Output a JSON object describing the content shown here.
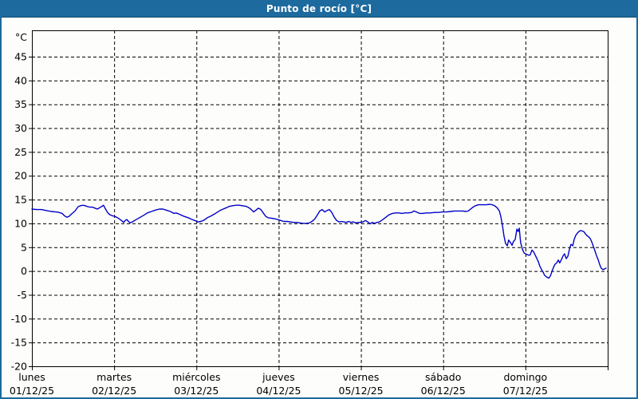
{
  "window": {
    "title": "Punto de rocío [°C]"
  },
  "colors": {
    "titlebar_bg": "#1d6a9e",
    "titlebar_border": "#10496f",
    "titlebar_text": "#ffffff",
    "page_bg": "#fdfefb",
    "page_border": "#1d6a9e",
    "axis": "#000000",
    "grid": "#000000",
    "line": "#0000c8"
  },
  "chart_data": {
    "type": "line",
    "title": "Punto de rocío [°C]",
    "y_unit": "°C",
    "ylim": [
      -20,
      50.5
    ],
    "yticks": [
      45,
      40,
      35,
      30,
      25,
      20,
      15,
      10,
      5,
      0,
      -5,
      -10,
      -15,
      -20
    ],
    "xlim_hours": [
      0,
      168
    ],
    "x_unit": "hours since 01/12/25 00:00",
    "grid": "dashed, horizontal every 5°C and vertical at day boundaries",
    "legend": "none",
    "x_day_labels": [
      {
        "name": "lunes",
        "date": "01/12/25"
      },
      {
        "name": "martes",
        "date": "02/12/25"
      },
      {
        "name": "miércoles",
        "date": "03/12/25"
      },
      {
        "name": "jueves",
        "date": "04/12/25"
      },
      {
        "name": "viernes",
        "date": "05/12/25"
      },
      {
        "name": "sábado",
        "date": "06/12/25"
      },
      {
        "name": "domingo",
        "date": "07/12/25"
      }
    ],
    "series": [
      {
        "name": "Punto de rocío",
        "color": "#0000c8",
        "points": [
          [
            0,
            13.0
          ],
          [
            1.4,
            12.9
          ],
          [
            2.8,
            12.9
          ],
          [
            4.2,
            12.7
          ],
          [
            5.6,
            12.5
          ],
          [
            7,
            12.4
          ],
          [
            7.9,
            12.3
          ],
          [
            8.8,
            12.1
          ],
          [
            9.5,
            11.6
          ],
          [
            10.2,
            11.3
          ],
          [
            10.9,
            11.5
          ],
          [
            11.6,
            12.0
          ],
          [
            12.6,
            12.6
          ],
          [
            13.5,
            13.5
          ],
          [
            14.2,
            13.7
          ],
          [
            14.9,
            13.8
          ],
          [
            15.6,
            13.7
          ],
          [
            16.3,
            13.5
          ],
          [
            17,
            13.4
          ],
          [
            17.7,
            13.4
          ],
          [
            18.4,
            13.2
          ],
          [
            19.1,
            13.0
          ],
          [
            19.8,
            13.3
          ],
          [
            20.5,
            13.6
          ],
          [
            20.9,
            13.8
          ],
          [
            21.4,
            13.1
          ],
          [
            21.9,
            12.5
          ],
          [
            22.3,
            12.1
          ],
          [
            22.8,
            11.8
          ],
          [
            23.5,
            11.6
          ],
          [
            24,
            11.5
          ],
          [
            24.7,
            11.3
          ],
          [
            25.4,
            11.0
          ],
          [
            26.1,
            10.6
          ],
          [
            26.8,
            10.2
          ],
          [
            27.2,
            10.6
          ],
          [
            27.7,
            10.8
          ],
          [
            28.2,
            10.4
          ],
          [
            28.6,
            10.1
          ],
          [
            29.3,
            10.3
          ],
          [
            30.2,
            10.7
          ],
          [
            31.4,
            11.2
          ],
          [
            32.6,
            11.7
          ],
          [
            33.7,
            12.2
          ],
          [
            34.9,
            12.5
          ],
          [
            36.1,
            12.8
          ],
          [
            37.2,
            13.0
          ],
          [
            38.2,
            13.0
          ],
          [
            39.1,
            12.8
          ],
          [
            40,
            12.6
          ],
          [
            40.7,
            12.4
          ],
          [
            41.4,
            12.1
          ],
          [
            42.1,
            12.2
          ],
          [
            42.8,
            12.0
          ],
          [
            43.7,
            11.7
          ],
          [
            44.7,
            11.4
          ],
          [
            45.6,
            11.2
          ],
          [
            46.5,
            10.9
          ],
          [
            47.5,
            10.6
          ],
          [
            48.4,
            10.3
          ],
          [
            49.3,
            10.4
          ],
          [
            50.3,
            10.7
          ],
          [
            51.2,
            11.2
          ],
          [
            52.1,
            11.5
          ],
          [
            53.1,
            11.9
          ],
          [
            54,
            12.3
          ],
          [
            54.9,
            12.7
          ],
          [
            55.8,
            13.0
          ],
          [
            56.8,
            13.3
          ],
          [
            57.7,
            13.6
          ],
          [
            58.6,
            13.7
          ],
          [
            59.6,
            13.8
          ],
          [
            60.5,
            13.8
          ],
          [
            61.4,
            13.7
          ],
          [
            62.4,
            13.6
          ],
          [
            63.3,
            13.3
          ],
          [
            64,
            12.9
          ],
          [
            64.7,
            12.4
          ],
          [
            65.4,
            12.8
          ],
          [
            66.1,
            13.2
          ],
          [
            66.8,
            12.9
          ],
          [
            67.5,
            12.2
          ],
          [
            68.2,
            11.5
          ],
          [
            68.9,
            11.2
          ],
          [
            69.8,
            11.1
          ],
          [
            70.7,
            11.0
          ],
          [
            71.7,
            10.8
          ],
          [
            72.6,
            10.6
          ],
          [
            73.5,
            10.4
          ],
          [
            74.5,
            10.4
          ],
          [
            75.4,
            10.3
          ],
          [
            76.3,
            10.2
          ],
          [
            77.3,
            10.2
          ],
          [
            78.2,
            10.1
          ],
          [
            79.1,
            10.0
          ],
          [
            80,
            10.0
          ],
          [
            81,
            10.1
          ],
          [
            81.9,
            10.5
          ],
          [
            82.6,
            11.0
          ],
          [
            83.3,
            11.8
          ],
          [
            84,
            12.6
          ],
          [
            84.7,
            12.9
          ],
          [
            85.4,
            12.4
          ],
          [
            86.1,
            12.7
          ],
          [
            86.8,
            12.9
          ],
          [
            87.5,
            12.3
          ],
          [
            88.2,
            11.3
          ],
          [
            88.9,
            10.6
          ],
          [
            89.6,
            10.3
          ],
          [
            90.3,
            10.4
          ],
          [
            91,
            10.3
          ],
          [
            91.7,
            10.2
          ],
          [
            92.4,
            10.4
          ],
          [
            93.1,
            10.2
          ],
          [
            93.8,
            10.3
          ],
          [
            94.5,
            10.1
          ],
          [
            95.2,
            10.2
          ],
          [
            95.9,
            10.2
          ],
          [
            96.6,
            10.3
          ],
          [
            97.3,
            10.6
          ],
          [
            98,
            10.3
          ],
          [
            98.7,
            9.9
          ],
          [
            99.3,
            10.2
          ],
          [
            100,
            10.0
          ],
          [
            100.7,
            10.2
          ],
          [
            101.4,
            10.3
          ],
          [
            102.4,
            10.8
          ],
          [
            103.3,
            11.3
          ],
          [
            104.2,
            11.8
          ],
          [
            105.2,
            12.1
          ],
          [
            106.1,
            12.2
          ],
          [
            107,
            12.2
          ],
          [
            108,
            12.1
          ],
          [
            108.9,
            12.2
          ],
          [
            109.8,
            12.2
          ],
          [
            110.8,
            12.3
          ],
          [
            111.5,
            12.6
          ],
          [
            112.2,
            12.4
          ],
          [
            113.1,
            12.1
          ],
          [
            114,
            12.1
          ],
          [
            115.2,
            12.2
          ],
          [
            116.3,
            12.2
          ],
          [
            117.5,
            12.3
          ],
          [
            118.7,
            12.3
          ],
          [
            119.8,
            12.4
          ],
          [
            121,
            12.4
          ],
          [
            122.2,
            12.5
          ],
          [
            123.3,
            12.6
          ],
          [
            124.5,
            12.6
          ],
          [
            125.7,
            12.6
          ],
          [
            126.6,
            12.5
          ],
          [
            127.3,
            12.6
          ],
          [
            128,
            13.0
          ],
          [
            128.7,
            13.4
          ],
          [
            129.4,
            13.7
          ],
          [
            130.3,
            13.9
          ],
          [
            131.5,
            13.9
          ],
          [
            132.6,
            13.9
          ],
          [
            133.6,
            14.0
          ],
          [
            134.3,
            13.9
          ],
          [
            135,
            13.7
          ],
          [
            135.7,
            13.3
          ],
          [
            136.4,
            12.6
          ],
          [
            136.8,
            11.5
          ],
          [
            137.3,
            9.5
          ],
          [
            137.7,
            7.5
          ],
          [
            138.2,
            5.8
          ],
          [
            138.7,
            5.3
          ],
          [
            139.1,
            6.5
          ],
          [
            139.6,
            6.0
          ],
          [
            140.1,
            5.4
          ],
          [
            140.5,
            6.2
          ],
          [
            141,
            6.6
          ],
          [
            141.5,
            8.8
          ],
          [
            141.9,
            8.3
          ],
          [
            142.2,
            9.0
          ],
          [
            142.6,
            6.0
          ],
          [
            143.1,
            4.6
          ],
          [
            143.6,
            3.8
          ],
          [
            144.3,
            3.5
          ],
          [
            145,
            3.3
          ],
          [
            145.4,
            3.4
          ],
          [
            145.9,
            4.4
          ],
          [
            146.4,
            4.0
          ],
          [
            146.8,
            3.4
          ],
          [
            147.3,
            2.7
          ],
          [
            147.8,
            1.9
          ],
          [
            148.2,
            1.0
          ],
          [
            148.7,
            0.3
          ],
          [
            149.2,
            -0.3
          ],
          [
            149.6,
            -0.9
          ],
          [
            150.3,
            -1.3
          ],
          [
            150.8,
            -1.5
          ],
          [
            151.3,
            -1.0
          ],
          [
            151.7,
            -0.2
          ],
          [
            152.2,
            0.8
          ],
          [
            152.6,
            1.4
          ],
          [
            153.1,
            1.7
          ],
          [
            153.6,
            2.3
          ],
          [
            154,
            1.7
          ],
          [
            154.5,
            2.4
          ],
          [
            155,
            3.2
          ],
          [
            155.4,
            3.6
          ],
          [
            155.9,
            2.6
          ],
          [
            156.4,
            3.1
          ],
          [
            156.8,
            4.5
          ],
          [
            157.3,
            5.6
          ],
          [
            157.8,
            5.3
          ],
          [
            158.2,
            6.6
          ],
          [
            158.7,
            7.5
          ],
          [
            159.2,
            8.0
          ],
          [
            159.6,
            8.3
          ],
          [
            160.1,
            8.5
          ],
          [
            160.6,
            8.4
          ],
          [
            161,
            8.3
          ],
          [
            161.5,
            7.8
          ],
          [
            162,
            7.4
          ],
          [
            162.4,
            7.2
          ],
          [
            162.9,
            6.8
          ],
          [
            163.3,
            6.2
          ],
          [
            163.8,
            5.2
          ],
          [
            164.3,
            4.2
          ],
          [
            164.7,
            3.3
          ],
          [
            165.2,
            2.4
          ],
          [
            165.7,
            1.3
          ],
          [
            166.1,
            0.6
          ],
          [
            166.6,
            0.3
          ],
          [
            167,
            0.4
          ],
          [
            167.5,
            0.6
          ]
        ]
      }
    ]
  }
}
